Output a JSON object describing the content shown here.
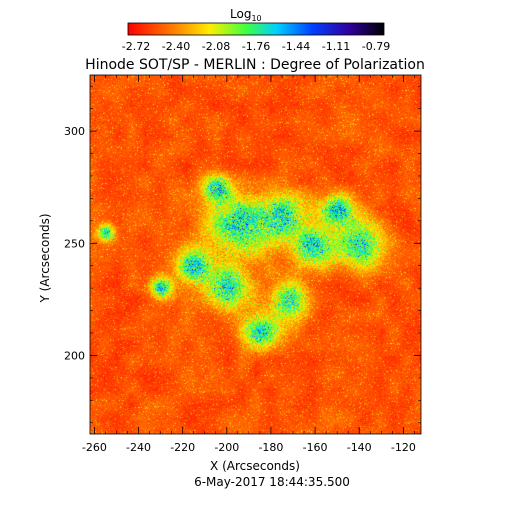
{
  "chart_data": {
    "type": "heatmap",
    "title": "Hinode SOT/SP - MERLIN : Degree of Polarization",
    "colorbar": {
      "label": "Log",
      "label_sub": "10",
      "ticks": [
        "-2.72",
        "-2.40",
        "-2.08",
        "-1.76",
        "-1.44",
        "-1.11",
        "-0.79"
      ],
      "range": [
        -2.72,
        -0.79
      ],
      "colormap": "rainbow (red low, violet/black high)"
    },
    "xlabel": "X (Arcseconds)",
    "ylabel": "Y (Arcseconds)",
    "xlim": [
      -262,
      -112
    ],
    "ylim": [
      165,
      325
    ],
    "xticks": [
      -260,
      -240,
      -220,
      -200,
      -180,
      -160,
      -140,
      -120
    ],
    "yticks": [
      200,
      250,
      300
    ],
    "footer": "6-May-2017 18:44:35.500",
    "grid": false,
    "colors": {
      "low": "#ff1a00",
      "mid_low": "#ffe000",
      "mid": "#00ff80",
      "mid_high": "#0050ff",
      "high": "#1c006a"
    }
  }
}
